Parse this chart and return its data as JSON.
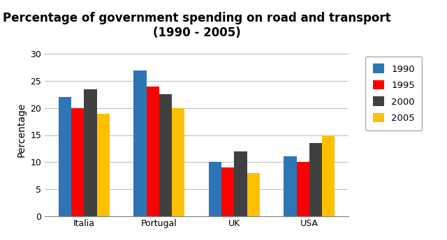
{
  "title": "Percentage of government spending on road and transport\n(1990 - 2005)",
  "ylabel": "Percentage",
  "categories": [
    "Italia",
    "Portugal",
    "UK",
    "USA"
  ],
  "years": [
    "1990",
    "1995",
    "2000",
    "2005"
  ],
  "values": {
    "1990": [
      22,
      27,
      10,
      11
    ],
    "1995": [
      20,
      24,
      9,
      10
    ],
    "2000": [
      23.5,
      22.5,
      12,
      13.5
    ],
    "2005": [
      19,
      20,
      8,
      15
    ]
  },
  "colors": {
    "1990": "#2e75b6",
    "1995": "#ff0000",
    "2000": "#404040",
    "2005": "#ffc000"
  },
  "ylim": [
    0,
    32
  ],
  "yticks": [
    0,
    5,
    10,
    15,
    20,
    25,
    30
  ],
  "bar_width": 0.17,
  "background_color": "#ffffff",
  "grid_color": "#c0c0c0",
  "legend_fontsize": 9.5,
  "title_fontsize": 12,
  "axis_label_fontsize": 10,
  "tick_fontsize": 9
}
